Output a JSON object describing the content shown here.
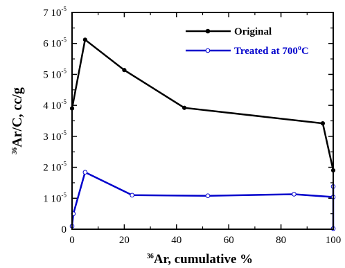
{
  "chart_data": {
    "type": "line",
    "xlabel": {
      "sup": "36",
      "main": "Ar, cumulative %"
    },
    "ylabel": {
      "sup": "36",
      "main": "Ar/C, cc/g"
    },
    "xlim": [
      0,
      100
    ],
    "ylim": [
      0,
      7e-05
    ],
    "x_ticks": [
      {
        "value": 0,
        "label": "0"
      },
      {
        "value": 20,
        "label": "20"
      },
      {
        "value": 40,
        "label": "40"
      },
      {
        "value": 60,
        "label": "60"
      },
      {
        "value": 80,
        "label": "80"
      },
      {
        "value": 100,
        "label": "100"
      }
    ],
    "y_ticks": [
      {
        "value": 0,
        "mant": "0",
        "exp": ""
      },
      {
        "value": 1e-05,
        "mant": "1 10",
        "exp": "-5"
      },
      {
        "value": 2e-05,
        "mant": "2 10",
        "exp": "-5"
      },
      {
        "value": 3e-05,
        "mant": "3 10",
        "exp": "-5"
      },
      {
        "value": 4e-05,
        "mant": "4 10",
        "exp": "-5"
      },
      {
        "value": 5e-05,
        "mant": "5 10",
        "exp": "-5"
      },
      {
        "value": 6e-05,
        "mant": "6 10",
        "exp": "-5"
      },
      {
        "value": 7e-05,
        "mant": "7 10",
        "exp": "-5"
      }
    ],
    "legend_position": "top-right",
    "series": [
      {
        "name": "Original",
        "color": "#000000",
        "marker": "filled-circle",
        "points": [
          {
            "x": 0,
            "y": 3.9e-05
          },
          {
            "x": 5,
            "y": 6.12e-05
          },
          {
            "x": 20,
            "y": 5.14e-05
          },
          {
            "x": 43,
            "y": 3.92e-05
          },
          {
            "x": 96,
            "y": 3.42e-05
          },
          {
            "x": 100,
            "y": 1.9e-05
          }
        ]
      },
      {
        "name": "Treated at 700",
        "name_suffix_sup": "o",
        "name_suffix": "C",
        "color": "#0000cc",
        "marker": "open-circle",
        "points": [
          {
            "x": 0,
            "y": 1e-06
          },
          {
            "x": 0.5,
            "y": 5e-06
          },
          {
            "x": 5,
            "y": 1.84e-05
          },
          {
            "x": 23,
            "y": 1.1e-05
          },
          {
            "x": 52,
            "y": 1.08e-05
          },
          {
            "x": 85,
            "y": 1.13e-05
          },
          {
            "x": 100,
            "y": 1.04e-05
          },
          {
            "x": 100,
            "y": 1.38e-05
          },
          {
            "x": 100,
            "y": 2e-07
          }
        ]
      }
    ]
  }
}
